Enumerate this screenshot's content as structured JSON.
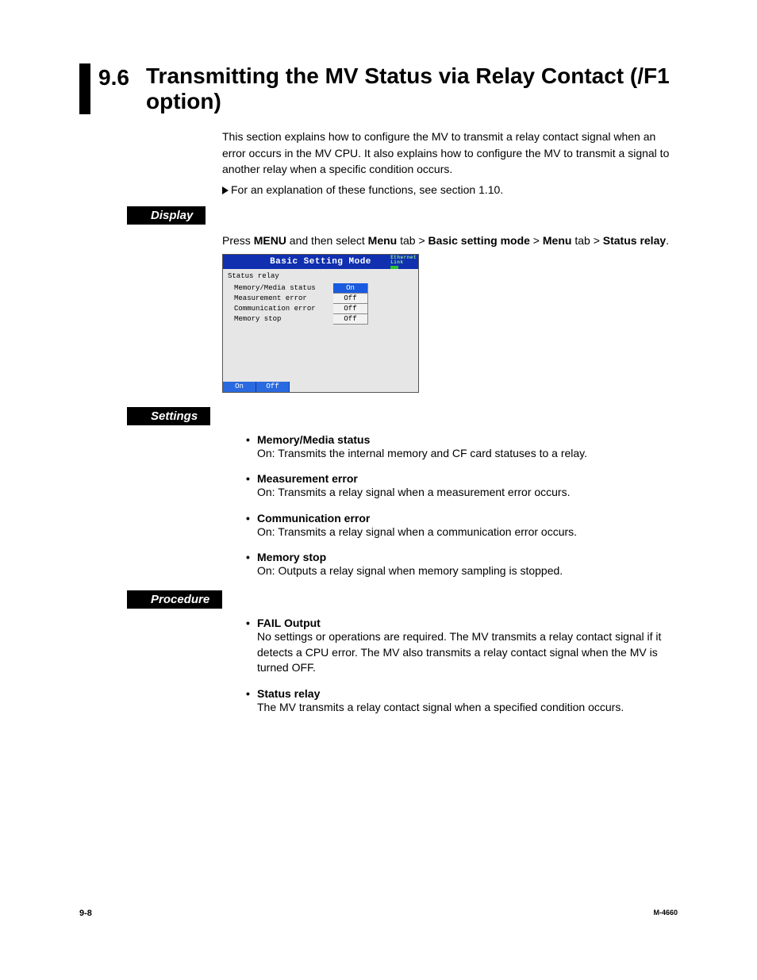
{
  "heading": {
    "number": "9.6",
    "title": "Transmitting the MV Status via Relay Contact (/F1 option)"
  },
  "intro": "This section explains how to configure the MV to transmit a relay contact signal when an error occurs in the MV CPU. It also explains how to configure the MV to transmit a signal to another relay when a specific condition occurs.",
  "xref": "For an explanation of these functions, see section 1.10.",
  "sections": {
    "display": "Display",
    "settings": "Settings",
    "procedure": "Procedure"
  },
  "nav": {
    "prefix": "Press ",
    "menu": "MENU",
    "mid1": " and then select ",
    "menutab": "Menu",
    "mid2": " tab > ",
    "basic": "Basic setting mode",
    "mid3": " > ",
    "menutab2": "Menu",
    "mid4": " tab > ",
    "status": "Status relay",
    "end": "."
  },
  "screenshot": {
    "title": "Basic Setting Mode",
    "ethernet_l1": "Ethernet",
    "ethernet_l2": "Link",
    "subtitle": "Status relay",
    "rows": [
      {
        "label": "Memory/Media status",
        "value": "On",
        "selected": true
      },
      {
        "label": "Measurement error",
        "value": "Off",
        "selected": false
      },
      {
        "label": "Communication error",
        "value": "Off",
        "selected": false
      },
      {
        "label": "Memory stop",
        "value": "Off",
        "selected": false
      }
    ],
    "buttons": [
      "On",
      "Off"
    ],
    "colors": {
      "titlebar_bg": "#1030b0",
      "selected_bg": "#1a5adf",
      "panel_bg": "#e6e6e6"
    }
  },
  "settings_items": [
    {
      "title": "Memory/Media status",
      "desc": "On: Transmits the internal memory and CF card statuses to a relay."
    },
    {
      "title": "Measurement error",
      "desc": "On: Transmits a relay signal when a measurement error occurs."
    },
    {
      "title": "Communication error",
      "desc": "On: Transmits a relay signal when a communication error occurs."
    },
    {
      "title": "Memory stop",
      "desc": "On: Outputs a relay signal when memory sampling is stopped."
    }
  ],
  "procedure_items": [
    {
      "title": "FAIL Output",
      "desc": "No settings or operations are required. The MV transmits a relay contact signal if it detects a CPU error. The MV also transmits a relay contact signal when the MV is turned OFF."
    },
    {
      "title": "Status relay",
      "desc": "The MV transmits a relay contact signal when a specified condition occurs."
    }
  ],
  "footer": {
    "left": "9-8",
    "right": "M-4660"
  }
}
